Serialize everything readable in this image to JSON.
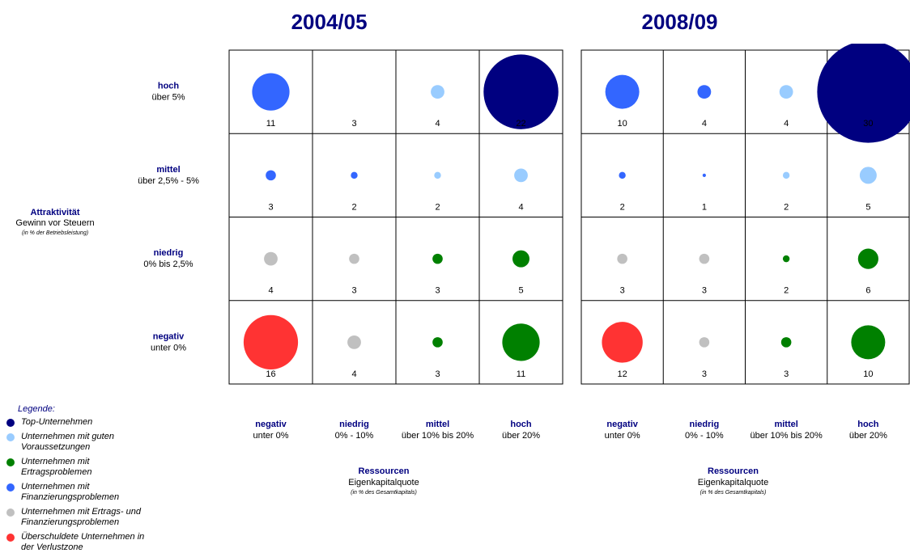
{
  "legend": {
    "title": "Legende:",
    "items": [
      {
        "name": "Top-Unternehmen",
        "color": "#000080"
      },
      {
        "name": "Unternehmen mit guten Voraussetzungen",
        "color": "#99ccff"
      },
      {
        "name": "Unternehmen mit Ertragsproblemen",
        "color": "#008000"
      },
      {
        "name": "Unternehmen mit Finanzierungsproblemen",
        "color": "#3366ff"
      },
      {
        "name": "Unternehmen mit Ertrags- und Finanzierungsproblemen",
        "color": "#c0c0c0"
      },
      {
        "name": "Überschuldete Unternehmen in der Verlustzone",
        "color": "#ff3333"
      }
    ]
  },
  "chart_data": [
    {
      "type": "bubble",
      "title": "2004/05",
      "y_label": {
        "title": "Attraktivität",
        "subtitle": "Gewinn vor Steuern",
        "note": "(in % der Betriebsleistung)"
      },
      "row_labels": [
        {
          "name": "hoch",
          "sub": "über 5%"
        },
        {
          "name": "mittel",
          "sub": "über 2,5% - 5%"
        },
        {
          "name": "niedrig",
          "sub": "0% bis 2,5%"
        },
        {
          "name": "negativ",
          "sub": "unter  0%"
        }
      ],
      "x_label": {
        "title": "Ressourcen",
        "subtitle": "Eigenkapitalquote",
        "note": "(in % des Gesamtkapitals)"
      },
      "col_labels": [
        {
          "name": "negativ",
          "sub": "unter 0%"
        },
        {
          "name": "niedrig",
          "sub": "0% - 10%"
        },
        {
          "name": "mittel",
          "sub": "über 10% bis 20%"
        },
        {
          "name": "hoch",
          "sub": "über 20%"
        }
      ],
      "values": [
        [
          11,
          3,
          4,
          22
        ],
        [
          3,
          2,
          2,
          4
        ],
        [
          4,
          3,
          3,
          5
        ],
        [
          16,
          4,
          3,
          11
        ]
      ],
      "groups": [
        [
          3,
          null,
          1,
          0
        ],
        [
          3,
          3,
          1,
          1
        ],
        [
          4,
          4,
          2,
          2
        ],
        [
          5,
          4,
          2,
          2
        ]
      ]
    },
    {
      "type": "bubble",
      "title": "2008/09",
      "x_label": {
        "title": "Ressourcen",
        "subtitle": "Eigenkapitalquote",
        "note": "(in % des Gesamtkapitals)"
      },
      "col_labels": [
        {
          "name": "negativ",
          "sub": "unter 0%"
        },
        {
          "name": "niedrig",
          "sub": "0% - 10%"
        },
        {
          "name": "mittel",
          "sub": "über 10% bis 20%"
        },
        {
          "name": "hoch",
          "sub": "über 20%"
        }
      ],
      "values": [
        [
          10,
          4,
          4,
          30
        ],
        [
          2,
          1,
          2,
          5
        ],
        [
          3,
          3,
          2,
          6
        ],
        [
          12,
          3,
          3,
          10
        ]
      ],
      "groups": [
        [
          3,
          3,
          1,
          0
        ],
        [
          3,
          3,
          1,
          1
        ],
        [
          4,
          4,
          2,
          2
        ],
        [
          5,
          4,
          2,
          2
        ]
      ]
    }
  ]
}
